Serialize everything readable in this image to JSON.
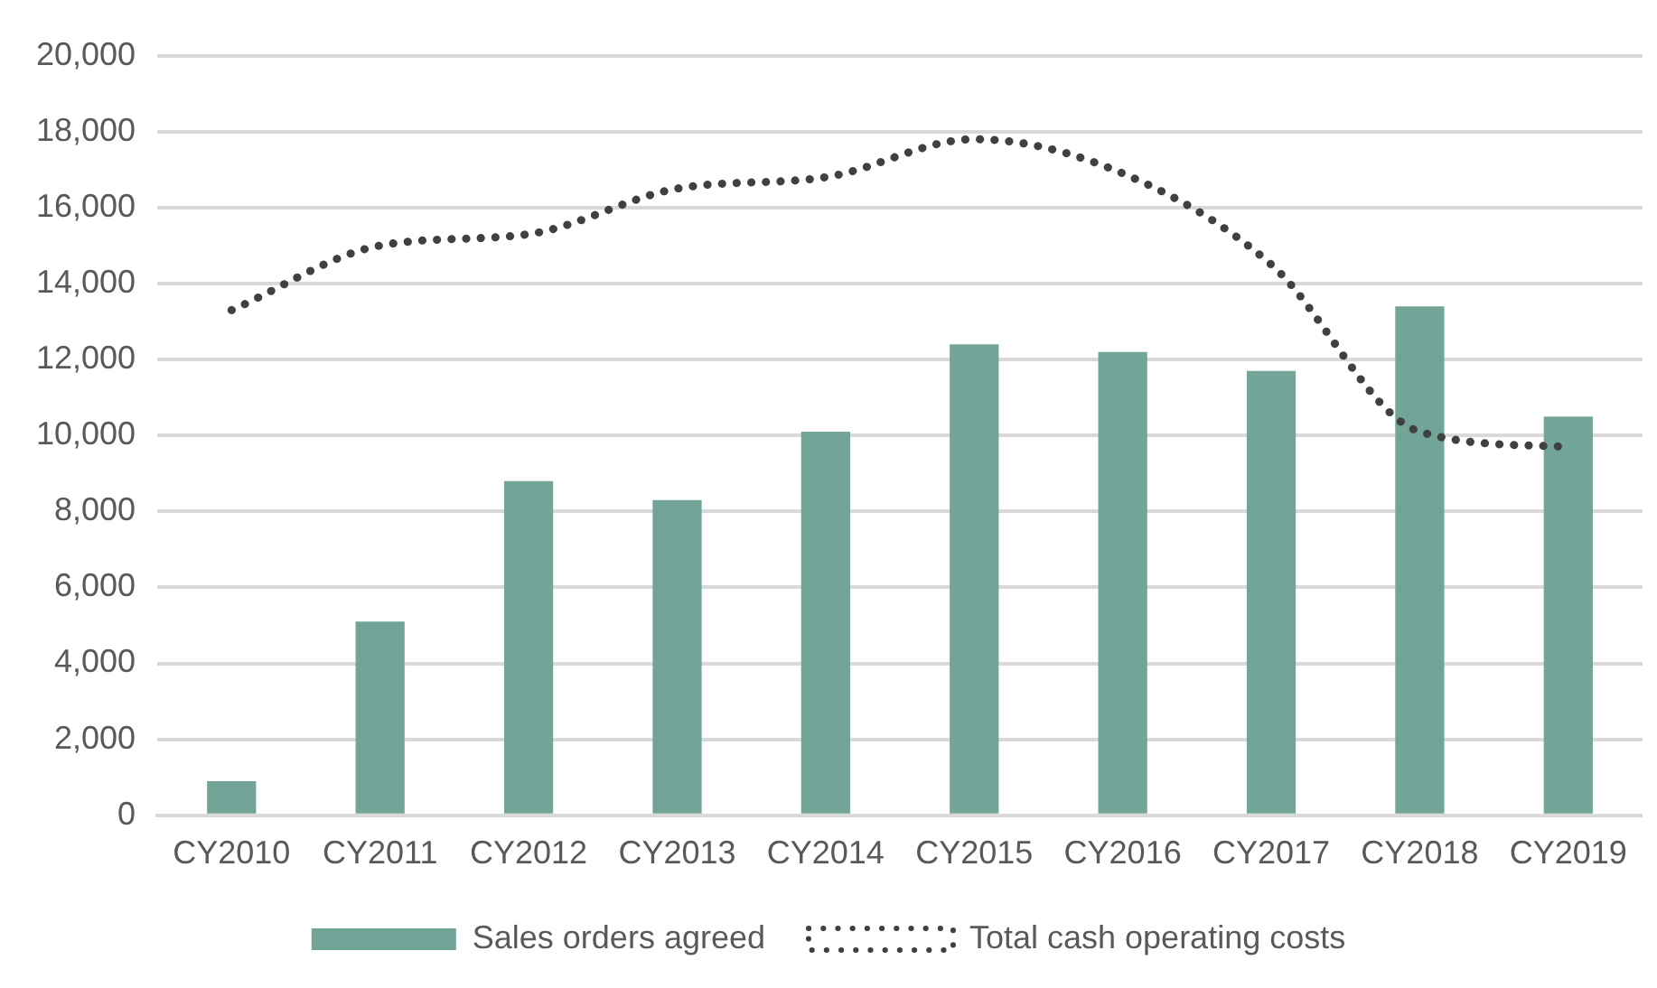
{
  "chart_data": {
    "type": "bar",
    "categories": [
      "CY2010",
      "CY2011",
      "CY2012",
      "CY2013",
      "CY2014",
      "CY2015",
      "CY2016",
      "CY2017",
      "CY2018",
      "CY2019"
    ],
    "series": [
      {
        "name": "Sales orders agreed",
        "color": "#72a598",
        "values": [
          900,
          5100,
          8800,
          8300,
          10100,
          12400,
          12200,
          11700,
          13400,
          10500
        ]
      },
      {
        "name": "Total cash operating costs",
        "type": "line",
        "color": "#404040",
        "line_style": "dotted",
        "marker": "none",
        "values": [
          13300,
          15000,
          15300,
          16500,
          16800,
          17800,
          16900,
          14500,
          10100,
          9700
        ]
      }
    ],
    "ylim": [
      0,
      20000
    ],
    "yticks": [
      0,
      {
        "value": 2000,
        "label": "2,000"
      },
      {
        "value": 4000,
        "label": "4,000"
      },
      {
        "value": 6000,
        "label": "6,000"
      },
      {
        "value": 8000,
        "label": "8,000"
      },
      {
        "value": 10000,
        "label": "10,000"
      },
      {
        "value": 12000,
        "label": "12,000"
      },
      {
        "value": 14000,
        "label": "14,000"
      },
      {
        "value": 16000,
        "label": "16,000"
      },
      {
        "value": 18000,
        "label": "18,000"
      },
      {
        "value": 20000,
        "label": "20,000"
      }
    ],
    "grid": "y",
    "legend": "bottom"
  }
}
